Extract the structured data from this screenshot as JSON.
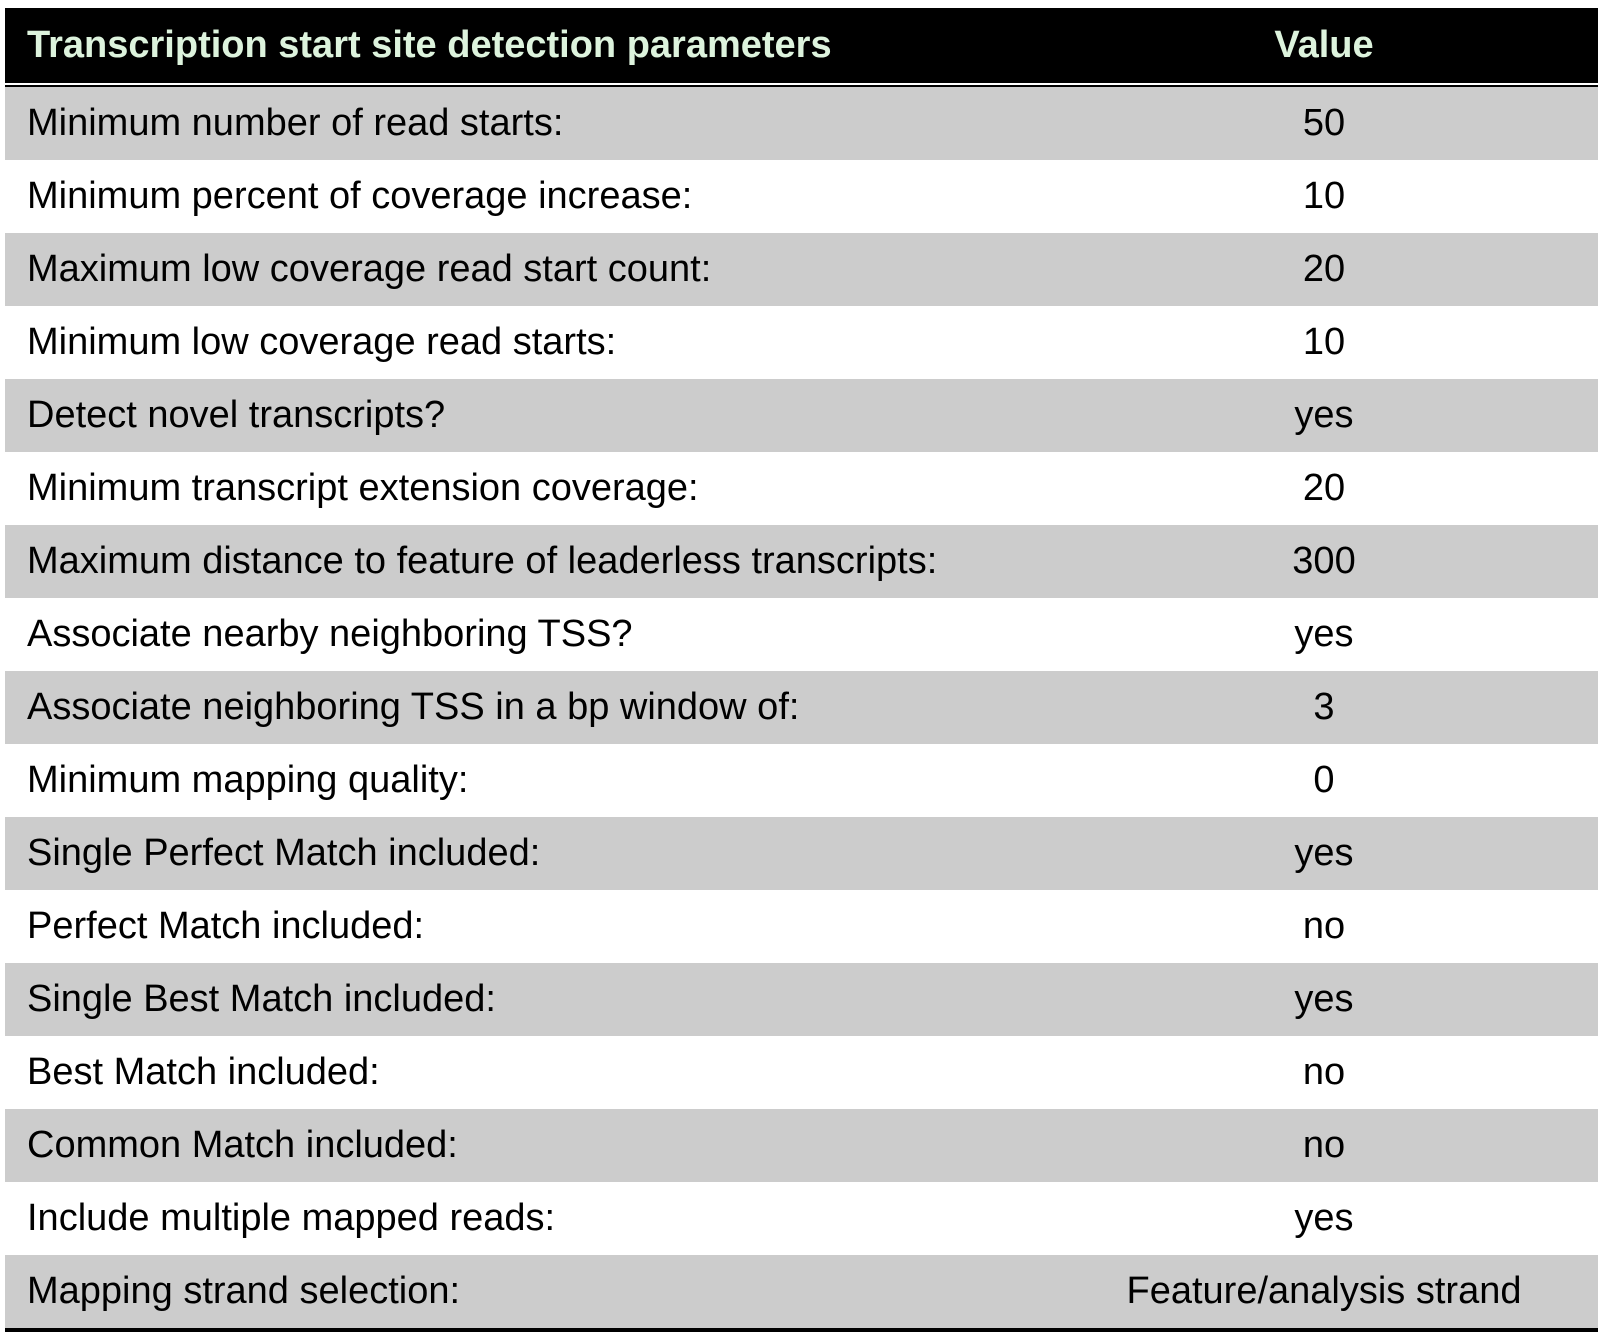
{
  "table": {
    "header": {
      "parameter": "Transcription start site detection parameters",
      "value": "Value"
    },
    "rows": [
      {
        "parameter": "Minimum number of read starts:",
        "value": "50"
      },
      {
        "parameter": "Minimum percent of coverage increase:",
        "value": "10"
      },
      {
        "parameter": "Maximum low coverage read start count:",
        "value": "20"
      },
      {
        "parameter": "Minimum low coverage read starts:",
        "value": "10"
      },
      {
        "parameter": "Detect novel transcripts?",
        "value": "yes"
      },
      {
        "parameter": "Minimum transcript extension coverage:",
        "value": "20"
      },
      {
        "parameter": "Maximum distance to feature of leaderless transcripts:",
        "value": "300"
      },
      {
        "parameter": "Associate nearby neighboring TSS?",
        "value": "yes"
      },
      {
        "parameter": "Associate neighboring TSS in a bp window of:",
        "value": "3"
      },
      {
        "parameter": "Minimum mapping quality:",
        "value": "0"
      },
      {
        "parameter": "Single Perfect Match included:",
        "value": "yes"
      },
      {
        "parameter": "Perfect Match included:",
        "value": "no"
      },
      {
        "parameter": "Single Best Match included:",
        "value": "yes"
      },
      {
        "parameter": "Best Match included:",
        "value": "no"
      },
      {
        "parameter": "Common Match included:",
        "value": "no"
      },
      {
        "parameter": "Include multiple mapped reads:",
        "value": "yes"
      },
      {
        "parameter": "Mapping strand selection:",
        "value": "Feature/analysis strand"
      }
    ]
  },
  "colors": {
    "header_background": "#000000",
    "header_text": "#ddf3dd",
    "shaded_row": "#cccccc",
    "plain_row": "#ffffff"
  }
}
